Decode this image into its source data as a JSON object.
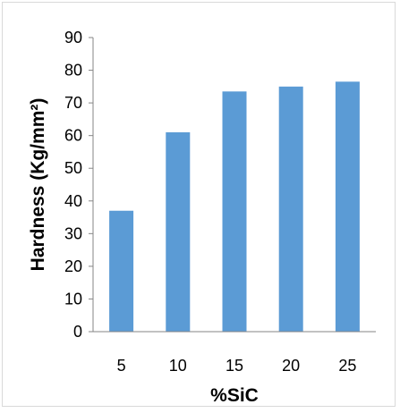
{
  "chart_data": {
    "type": "bar",
    "categories": [
      "5",
      "10",
      "15",
      "20",
      "25"
    ],
    "values": [
      37,
      61,
      73.5,
      75,
      76.5
    ],
    "xlabel": "%SiC",
    "ylabel": "Hardness (Kg/mm²)",
    "ylim": [
      0,
      90
    ],
    "yticks": [
      "0",
      "10",
      "20",
      "30",
      "40",
      "50",
      "60",
      "70",
      "80",
      "90"
    ],
    "grid": false,
    "legend": "none",
    "bar_color": "#5b9bd5",
    "axis_color": "#868686"
  }
}
